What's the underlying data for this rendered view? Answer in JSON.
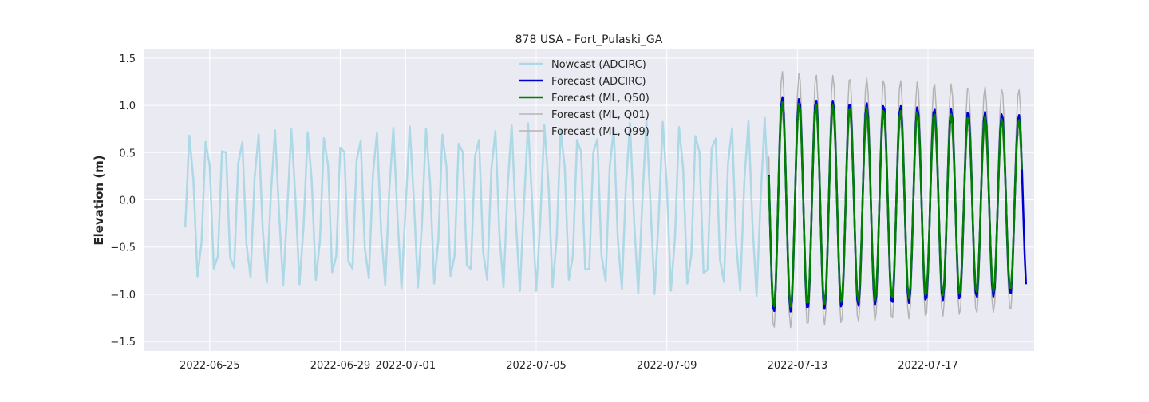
{
  "chart_data": {
    "type": "line",
    "title": "878 USA - Fort_Pulaski_GA",
    "xlabel": "",
    "ylabel": "Elevation (m)",
    "xlim": [
      "2022-06-23T00:00",
      "2022-07-20T06:00"
    ],
    "ylim": [
      -1.6,
      1.6
    ],
    "x_ticks": [
      "2022-06-25",
      "2022-06-29",
      "2022-07-01",
      "2022-07-05",
      "2022-07-09",
      "2022-07-13",
      "2022-07-17"
    ],
    "y_ticks": [
      -1.5,
      -1.0,
      -0.5,
      0.0,
      0.5,
      1.0,
      1.5
    ],
    "y_tick_labels": [
      "−1.5",
      "−1.0",
      "−0.5",
      "0.0",
      "0.5",
      "1.0",
      "1.5"
    ],
    "grid": true,
    "legend_position": "top-center",
    "series": [
      {
        "name": "Nowcast (ADCIRC)",
        "color": "#add8e6",
        "linewidth": 2.5,
        "start": "2022-06-24T06:00",
        "end": "2022-07-12T03:00",
        "mean": -0.08,
        "amplitude_start": 0.8,
        "amplitude_end": 0.95,
        "period_hours": 12.42,
        "phase_deg": 105,
        "sample_step_hours": 3
      },
      {
        "name": "Forecast (ADCIRC)",
        "color": "#0000cd",
        "linewidth": 2.5,
        "start": "2022-07-12T03:00",
        "end": "2022-07-20T00:00",
        "mean": -0.05,
        "amplitude_start": 1.15,
        "amplitude_end": 0.95,
        "period_hours": 12.42,
        "phase_deg": 90,
        "sample_step_hours": 1
      },
      {
        "name": "Forecast (ML, Q50)",
        "color": "#008000",
        "linewidth": 2.5,
        "start": "2022-07-12T03:00",
        "end": "2022-07-19T21:00",
        "mean": -0.05,
        "amplitude_start": 1.1,
        "amplitude_end": 0.9,
        "period_hours": 12.42,
        "phase_deg": 90,
        "sample_step_hours": 1
      },
      {
        "name": "Forecast (ML, Q01)",
        "color": "#b4b4b4",
        "linewidth": 1.5,
        "start": "2022-07-12T03:00",
        "end": "2022-07-19T21:00",
        "mean": -0.22,
        "amplitude_start": 1.15,
        "amplitude_end": 0.95,
        "period_hours": 12.42,
        "phase_deg": 90,
        "sample_step_hours": 1
      },
      {
        "name": "Forecast (ML, Q99)",
        "color": "#b4b4b4",
        "linewidth": 1.5,
        "start": "2022-07-12T03:00",
        "end": "2022-07-19T21:00",
        "mean": 0.12,
        "amplitude_start": 1.25,
        "amplitude_end": 1.05,
        "period_hours": 12.42,
        "phase_deg": 90,
        "sample_step_hours": 1
      }
    ]
  },
  "colors": {
    "plot_background": "#eaeaf2",
    "grid": "#ffffff",
    "text": "#262626"
  }
}
